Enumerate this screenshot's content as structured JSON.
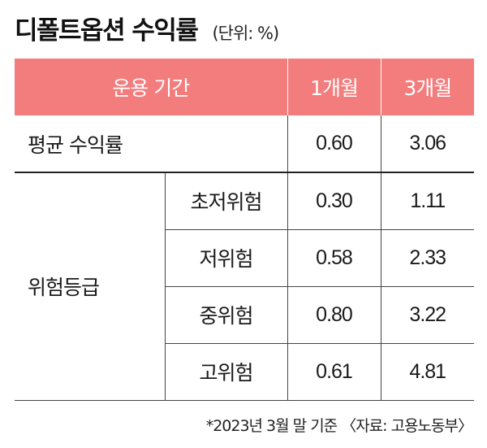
{
  "title": "디폴트옵션 수익률",
  "unit": "(단위: %)",
  "header": {
    "period": "운용 기간",
    "col1": "1개월",
    "col2": "3개월"
  },
  "avg_row": {
    "label": "평균 수익률",
    "m1": "0.60",
    "m3": "3.06"
  },
  "risk_group": {
    "label": "위험등급",
    "rows": [
      {
        "label": "초저위험",
        "m1": "0.30",
        "m3": "1.11"
      },
      {
        "label": "저위험",
        "m1": "0.58",
        "m3": "2.33"
      },
      {
        "label": "중위험",
        "m1": "0.80",
        "m3": "3.22"
      },
      {
        "label": "고위험",
        "m1": "0.61",
        "m3": "4.81"
      }
    ]
  },
  "footnote": "*2023년 3월 말 기준 〈자료: 고용노동부〉",
  "colors": {
    "header_bg": "#f37c7d",
    "header_text": "#ffffff"
  }
}
